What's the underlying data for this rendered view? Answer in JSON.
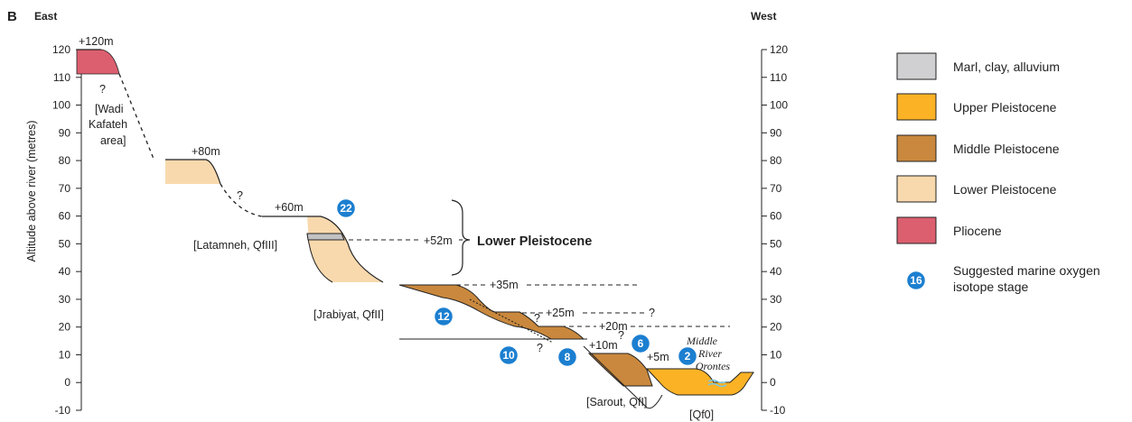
{
  "panel_label": "B",
  "east_label": "East",
  "west_label": "West",
  "y_axis_title": "Altitude above river (metres)",
  "y_ticks": [
    "120",
    "110",
    "100",
    "90",
    "80",
    "70",
    "60",
    "50",
    "40",
    "30",
    "20",
    "10",
    "0",
    "-10"
  ],
  "colors": {
    "marl": "#d0d0d2",
    "upper": "#fbb225",
    "middle": "#c9883d",
    "lower": "#f8d9ad",
    "pliocene": "#dc5f6f",
    "badge": "#1c7fd0",
    "river": "#7ac7e6"
  },
  "legend": {
    "items": [
      {
        "label": "Marl, clay, alluvium",
        "color": "#d0d0d2"
      },
      {
        "label": "Upper Pleistocene",
        "color": "#fbb225"
      },
      {
        "label": "Middle Pleistocene",
        "color": "#c9883d"
      },
      {
        "label": "Lower Pleistocene",
        "color": "#f8d9ad"
      },
      {
        "label": "Pliocene",
        "color": "#dc5f6f"
      }
    ],
    "badge_number": "16",
    "badge_line1": "Suggested marine oxygen",
    "badge_line2": "isotope stage"
  },
  "labels": {
    "plus120": "+120m",
    "q1": "?",
    "wadi1": "[Wadi",
    "wadi2": "Kafateh",
    "wadi3": "area]",
    "plus80": "+80m",
    "q2": "?",
    "plus60": "+60m",
    "latamneh": "[Latamneh, QfIII]",
    "plus52": "+52m",
    "lower_pleistocene": "Lower Pleistocene",
    "plus35": "+35m",
    "jrabiyat": "[Jrabiyat, QfII]",
    "plus25": "+25m",
    "q3": "?",
    "q4": "?",
    "plus20": "+20m",
    "q5": "?",
    "q6": "?",
    "plus10": "+10m",
    "plus5": "+5m",
    "river1": "Middle",
    "river2": "River",
    "river3": "Orontes",
    "sarout": "[Sarout, QfI]",
    "qf0": "[Qf0]"
  },
  "badges": {
    "b22": "22",
    "b12": "12",
    "b10": "10",
    "b8": "8",
    "b6": "6",
    "b2": "2"
  }
}
